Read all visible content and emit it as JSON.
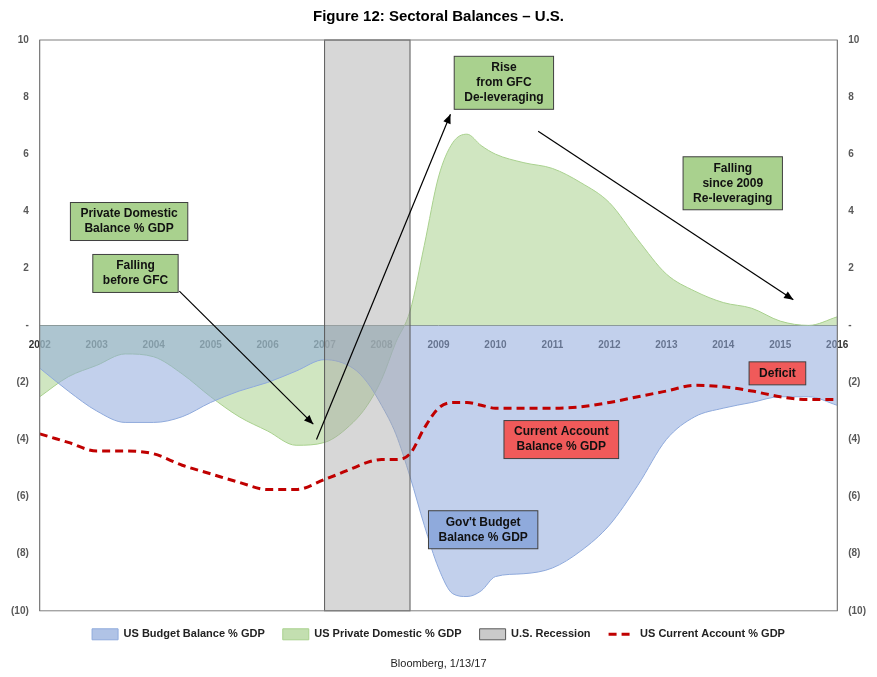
{
  "chart_data": {
    "type": "line",
    "title": "Figure 12: Sectoral Balances – U.S.",
    "source": "Bloomberg, 1/13/17",
    "x": [
      2002,
      2002.5,
      2003,
      2003.5,
      2004,
      2004.5,
      2005,
      2005.5,
      2006,
      2006.5,
      2007,
      2007.5,
      2007.75,
      2008,
      2008.25,
      2008.5,
      2008.75,
      2009,
      2009.25,
      2009.5,
      2009.75,
      2010,
      2010.5,
      2011,
      2011.5,
      2012,
      2012.5,
      2013,
      2013.5,
      2014,
      2014.5,
      2015,
      2015.5,
      2016
    ],
    "xlim": [
      2002,
      2016
    ],
    "xticks": [
      2002,
      2003,
      2004,
      2005,
      2006,
      2007,
      2008,
      2009,
      2010,
      2011,
      2012,
      2013,
      2014,
      2015,
      2016
    ],
    "ylim": [
      -10,
      10
    ],
    "yticks": [
      10,
      8,
      6,
      4,
      2,
      {
        "value": 0,
        "label": "-"
      },
      {
        "value": -2,
        "label": "(2)"
      },
      {
        "value": -4,
        "label": "(4)"
      },
      {
        "value": -6,
        "label": "(6)"
      },
      {
        "value": -8,
        "label": "(8)"
      },
      {
        "value": -10,
        "label": "(10)"
      }
    ],
    "grid": false,
    "legend": "bottom",
    "series": [
      {
        "name": "US Budget Balance % GDP",
        "type": "area",
        "color": "#8faadc",
        "values": [
          -1.5,
          -2.3,
          -3.0,
          -3.4,
          -3.4,
          -3.2,
          -2.7,
          -2.3,
          -2.0,
          -1.6,
          -1.2,
          -1.5,
          -2.0,
          -2.8,
          -3.8,
          -5.3,
          -7.0,
          -8.5,
          -9.4,
          -9.5,
          -9.3,
          -8.8,
          -8.7,
          -8.5,
          -7.9,
          -7.0,
          -5.6,
          -4.0,
          -3.2,
          -2.9,
          -2.7,
          -2.5,
          -2.5,
          -2.8
        ]
      },
      {
        "name": "US Private Domestic % GDP",
        "type": "area",
        "color": "#a9d18e",
        "values": [
          -2.5,
          -1.8,
          -1.4,
          -1.0,
          -1.1,
          -1.7,
          -2.5,
          -3.2,
          -3.7,
          -4.2,
          -4.1,
          -3.4,
          -2.8,
          -1.9,
          -0.6,
          0.5,
          2.8,
          5.2,
          6.4,
          6.7,
          6.3,
          6.0,
          5.7,
          5.5,
          5.0,
          4.3,
          3.0,
          1.8,
          1.2,
          0.8,
          0.6,
          0.15,
          0.0,
          0.3
        ]
      },
      {
        "name": "US Current Account % GDP",
        "type": "line",
        "color": "#c00000",
        "line_style": "dashed",
        "values": [
          -3.8,
          -4.1,
          -4.4,
          -4.4,
          -4.5,
          -4.9,
          -5.2,
          -5.5,
          -5.75,
          -5.75,
          -5.4,
          -5.0,
          -4.8,
          -4.7,
          -4.7,
          -4.5,
          -3.6,
          -2.9,
          -2.7,
          -2.7,
          -2.8,
          -2.9,
          -2.9,
          -2.9,
          -2.85,
          -2.7,
          -2.5,
          -2.3,
          -2.1,
          -2.15,
          -2.3,
          -2.5,
          -2.6,
          -2.6
        ]
      }
    ],
    "shaded_regions": [
      {
        "name": "U.S. Recession",
        "color": "#a6a6a6",
        "x": [
          2007,
          2008.5
        ]
      }
    ],
    "annotations": [
      {
        "text": [
          "Private Domestic",
          "Balance % GDP"
        ],
        "color": "#a9d18e"
      },
      {
        "text": [
          "Falling",
          "before GFC"
        ],
        "color": "#a9d18e"
      },
      {
        "text": [
          "Rise",
          "from GFC",
          "De-leveraging"
        ],
        "color": "#a9d18e"
      },
      {
        "text": [
          "Falling",
          "since 2009",
          "Re-leveraging"
        ],
        "color": "#a9d18e"
      },
      {
        "text": [
          "Deficit"
        ],
        "color": "#f05a5a"
      },
      {
        "text": [
          "Current Account",
          "Balance % GDP"
        ],
        "color": "#f05a5a"
      },
      {
        "text": [
          "Gov't Budget",
          "Balance % GDP"
        ],
        "color": "#8faadc"
      }
    ]
  }
}
